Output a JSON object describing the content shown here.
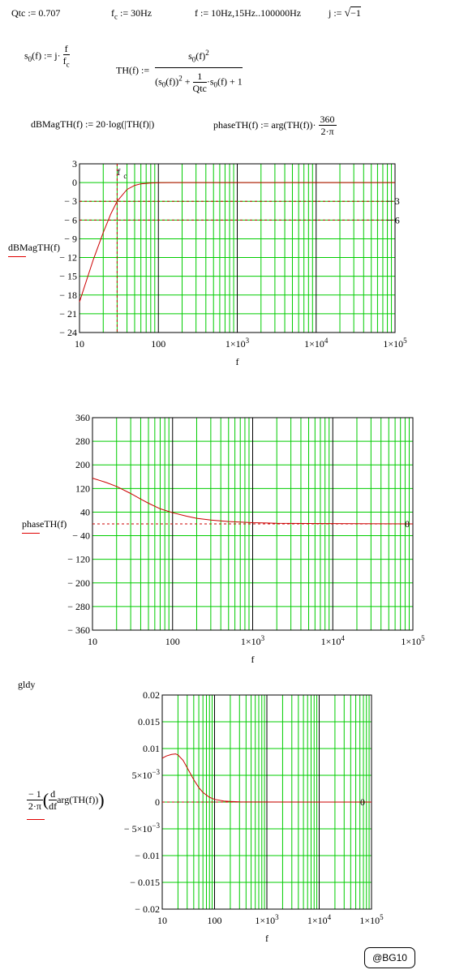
{
  "definitions": {
    "qtc": "Qtc := 0.707",
    "fc_name": "f",
    "fc_sub": "c",
    "fc_val": " := 30Hz",
    "f_range": "f := 10Hz,15Hz..100000Hz",
    "j_lhs": "j := ",
    "j_rad": "−1",
    "s0_lhs": "s",
    "s0_sub": "0",
    "s0_mid": "(f) := j·",
    "s0_num": "f",
    "s0_den_main": "f",
    "s0_den_sub": "c",
    "th_lhs": "TH(f) :=",
    "th_num": "s",
    "th_num_sub": "0",
    "th_num_rest": "(f)",
    "th_num_sup": "2",
    "th_den_a": "(s",
    "th_den_a_sub": "0",
    "th_den_a_rest": "(f))",
    "th_den_a_sup": "2",
    "th_den_plus": " + ",
    "th_den_fnum": "1",
    "th_den_fden": "Qtc",
    "th_den_b": "·s",
    "th_den_b_sub": "0",
    "th_den_b_rest": "(f) + 1",
    "dbmag": "dBMagTH(f) := 20·log(|TH(f)|)",
    "phase_lhs": "phaseTH(f) := arg(TH(f))·",
    "phase_num": "360",
    "phase_den": "2·π",
    "gldy": "gldy"
  },
  "plots": {
    "mag": {
      "ylabel": "dBMagTH(f)",
      "xlabel": "f",
      "yticks": [
        "3",
        "0",
        "− 3",
        "− 6",
        "− 9",
        "− 12",
        "− 15",
        "− 18",
        "− 21",
        "− 24"
      ],
      "xticks": [
        "10",
        "100",
        "1×10",
        "1×10",
        "1×10"
      ],
      "xtick_exp": [
        "",
        "",
        "3",
        "4",
        "5"
      ],
      "marker_fc": "f",
      "marker_fc_sub": "c",
      "marker_m3": "− 3",
      "marker_m6": "− 6"
    },
    "phase": {
      "ylabel": "phaseTH(f)",
      "xlabel": "f",
      "yticks": [
        "360",
        "280",
        "200",
        "120",
        "40",
        "− 40",
        "− 120",
        "− 200",
        "− 280",
        "− 360"
      ],
      "xticks": [
        "10",
        "100",
        "1×10",
        "1×10",
        "1×10"
      ],
      "xtick_exp": [
        "",
        "",
        "3",
        "4",
        "5"
      ],
      "marker_zero": "0"
    },
    "delay": {
      "ylabel_num": "− 1",
      "ylabel_den": "2·π",
      "ylabel_d": "d",
      "ylabel_df": "df",
      "ylabel_expr": "arg(TH(f))",
      "xlabel": "f",
      "yticks": [
        "0.02",
        "0.015",
        "0.01",
        "5×10",
        "0",
        "− 5×10",
        "− 0.01",
        "− 0.015",
        "− 0.02"
      ],
      "ytick_exp": [
        "",
        "",
        "",
        "−3",
        "",
        "−3",
        "",
        "",
        ""
      ],
      "xticks": [
        "10",
        "100",
        "1×10",
        "1×10",
        "1×10"
      ],
      "xtick_exp": [
        "",
        "",
        "3",
        "4",
        "5"
      ],
      "marker_zero": "0"
    }
  },
  "badge": "@BG10",
  "colors": {
    "grid": "#00cc00",
    "decade": "#000000",
    "curve": "#cc0000",
    "dash": "#cc0000",
    "text": "#000000"
  },
  "chart_data": [
    {
      "type": "line",
      "x_scale": "log",
      "xlim": [
        10,
        100000
      ],
      "ylim": [
        -24,
        3
      ],
      "xlabel": "f",
      "ylabel": "dBMagTH(f)",
      "series": [
        {
          "x": [
            10,
            15,
            20,
            25,
            30,
            40,
            50,
            60,
            80,
            100,
            150,
            200,
            500,
            1000,
            10000,
            100000
          ],
          "values": [
            -19.1,
            -12.3,
            -8.0,
            -5.0,
            -3.0,
            -1.1,
            -0.45,
            -0.2,
            -0.06,
            -0.02,
            0,
            0,
            0,
            0,
            0,
            0
          ]
        }
      ],
      "reference_lines": [
        -3,
        -6
      ],
      "fc_marker_x": 30
    },
    {
      "type": "line",
      "x_scale": "log",
      "xlim": [
        10,
        100000
      ],
      "ylim": [
        -360,
        360
      ],
      "xlabel": "f",
      "ylabel": "phaseTH(f)",
      "series": [
        {
          "x": [
            10,
            15,
            20,
            30,
            40,
            50,
            70,
            100,
            150,
            200,
            300,
            500,
            700,
            1000,
            1500,
            2000,
            100000
          ],
          "values": [
            155,
            140,
            127,
            103,
            84,
            70,
            51,
            38,
            26,
            19,
            13,
            8,
            6,
            4,
            3,
            2,
            0
          ]
        }
      ],
      "reference_lines": [
        0
      ]
    },
    {
      "type": "line",
      "x_scale": "log",
      "xlim": [
        10,
        100000
      ],
      "ylim": [
        -0.02,
        0.02
      ],
      "xlabel": "f",
      "ylabel": "−1/(2·π)·d/df arg(TH(f))",
      "series": [
        {
          "x": [
            10,
            12,
            15,
            18,
            20,
            25,
            30,
            40,
            50,
            60,
            80,
            100,
            150,
            200,
            300,
            400,
            100000
          ],
          "values": [
            0.0082,
            0.0086,
            0.0089,
            0.009,
            0.0088,
            0.0078,
            0.0064,
            0.0042,
            0.0027,
            0.0018,
            0.0009,
            0.0005,
            0.0002,
            0.0001,
            3e-05,
            1e-05,
            0
          ]
        }
      ],
      "reference_lines": [
        0
      ]
    }
  ]
}
